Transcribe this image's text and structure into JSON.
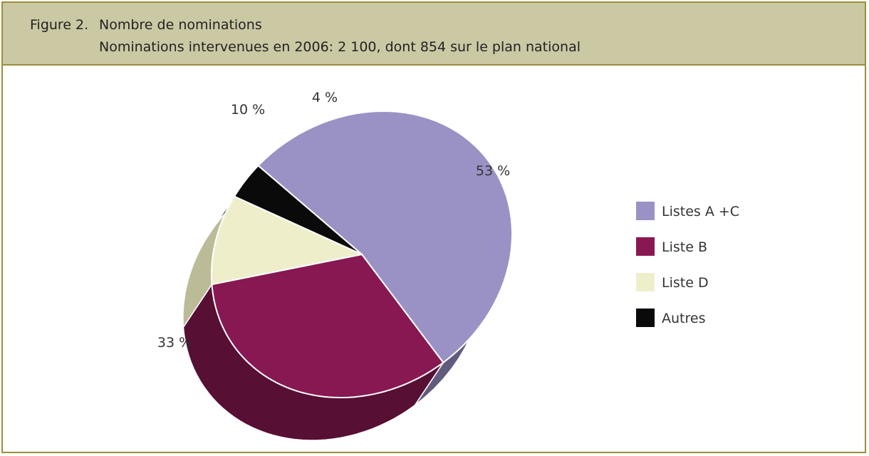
{
  "header": {
    "figure_label": "Figure 2.",
    "title": "Nombre de nominations",
    "subtitle": "Nominations intervenues en 2006: 2 100, dont 854 sur le plan national"
  },
  "chart_data": {
    "type": "pie",
    "title": "Nombre de nominations",
    "subtitle": "Nominations intervenues en 2006: 2 100, dont 854 sur le plan national",
    "categories": [
      "Listes A +C",
      "Liste B",
      "Liste D",
      "Autres"
    ],
    "values": [
      53,
      33,
      10,
      4
    ],
    "value_labels": [
      "53 %",
      "33 %",
      "10 %",
      "4 %"
    ],
    "unit": "%",
    "style": "3d",
    "legend_position": "right",
    "colors": {
      "Listes A +C": {
        "top": "#9a92c4",
        "side": "#615c7d"
      },
      "Liste B": {
        "top": "#881852",
        "side": "#570f33"
      },
      "Liste D": {
        "top": "#efeecb",
        "side": "#bcbb98"
      },
      "Autres": {
        "top": "#0a0a0a",
        "side": "#000000"
      }
    }
  }
}
